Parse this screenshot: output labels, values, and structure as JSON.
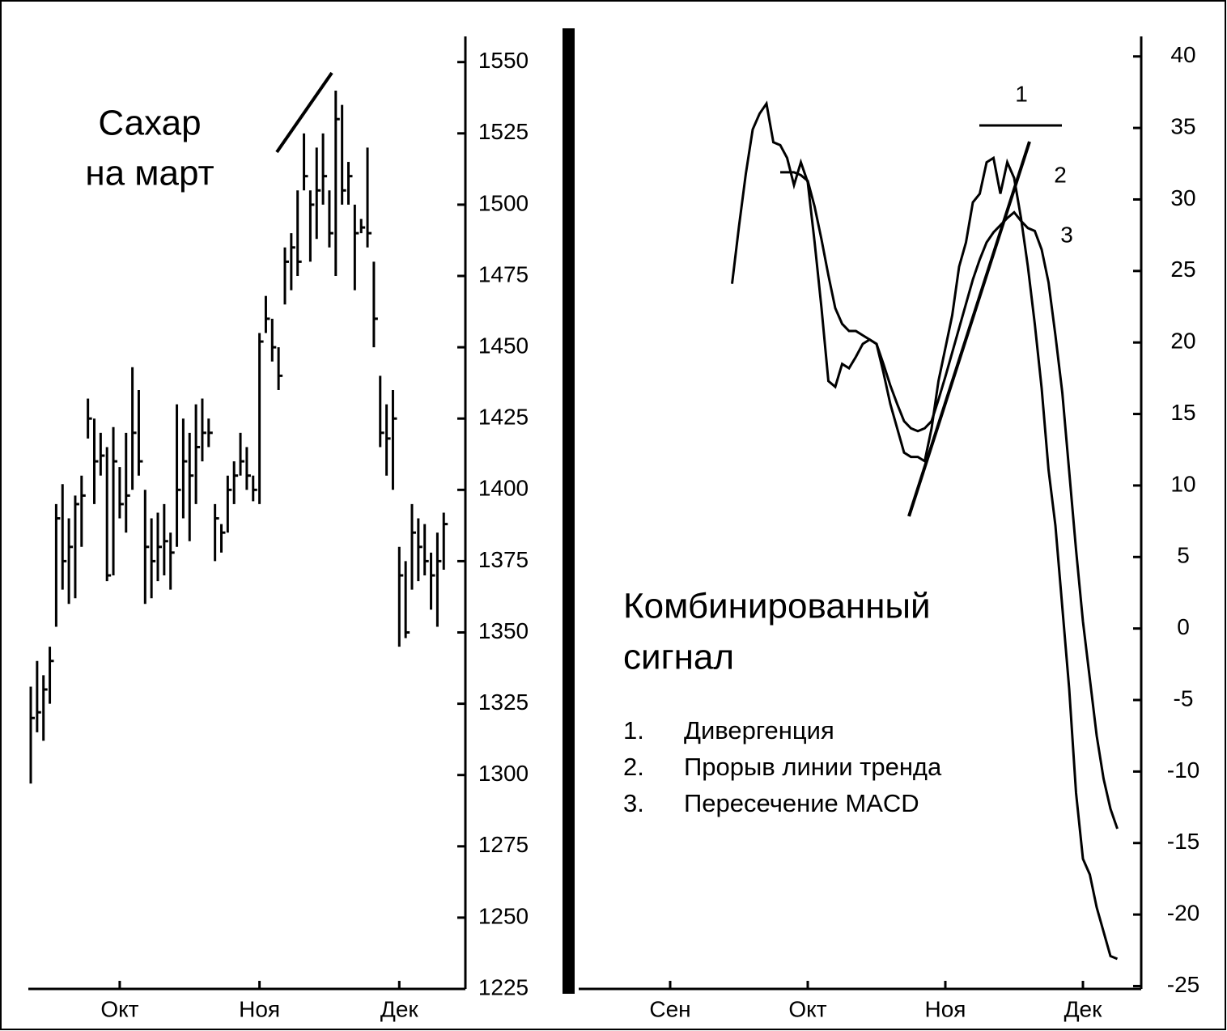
{
  "chart_data": [
    {
      "type": "ohlc",
      "title": [
        "Сахар",
        "на март"
      ],
      "color": "#000000",
      "categories": [
        null,
        null,
        null,
        null,
        null,
        null,
        null,
        null,
        null,
        null,
        null,
        null,
        null,
        null,
        "Окт",
        null,
        null,
        null,
        null,
        null,
        null,
        null,
        null,
        null,
        null,
        null,
        null,
        null,
        null,
        null,
        null,
        null,
        null,
        null,
        null,
        null,
        "Ноя",
        null,
        null,
        null,
        null,
        null,
        null,
        null,
        null,
        null,
        null,
        null,
        null,
        null,
        null,
        null,
        null,
        null,
        null,
        null,
        null,
        null,
        "Дек",
        null,
        null,
        null,
        null,
        null,
        null,
        null
      ],
      "high": [
        1331,
        1340,
        1335,
        1345,
        1395,
        1402,
        1390,
        1398,
        1405,
        1432,
        1425,
        1420,
        1415,
        1422,
        1408,
        1420,
        1443,
        1435,
        1400,
        1390,
        1392,
        1395,
        1385,
        1430,
        1425,
        1420,
        1430,
        1432,
        1425,
        1395,
        1388,
        1405,
        1410,
        1420,
        1415,
        1405,
        1455,
        1468,
        1460,
        1450,
        1485,
        1490,
        1505,
        1525,
        1505,
        1520,
        1525,
        1505,
        1540,
        1535,
        1515,
        1500,
        1495,
        1520,
        1480,
        1440,
        1430,
        1435,
        1380,
        1375,
        1395,
        1390,
        1388,
        1378,
        1385,
        1392
      ],
      "low": [
        1297,
        1315,
        1312,
        1325,
        1352,
        1365,
        1360,
        1362,
        1380,
        1418,
        1395,
        1405,
        1368,
        1370,
        1390,
        1385,
        1400,
        1405,
        1360,
        1362,
        1368,
        1370,
        1365,
        1380,
        1390,
        1382,
        1395,
        1410,
        1415,
        1375,
        1378,
        1385,
        1395,
        1405,
        1400,
        1396,
        1395,
        1455,
        1445,
        1435,
        1465,
        1470,
        1475,
        1505,
        1480,
        1488,
        1500,
        1485,
        1475,
        1500,
        1500,
        1470,
        1490,
        1485,
        1450,
        1415,
        1405,
        1400,
        1345,
        1348,
        1365,
        1368,
        1370,
        1358,
        1352,
        1372
      ],
      "close": [
        1320,
        1322,
        1330,
        1340,
        1390,
        1375,
        1380,
        1395,
        1398,
        1425,
        1410,
        1412,
        1370,
        1410,
        1395,
        1398,
        1420,
        1410,
        1380,
        1375,
        1380,
        1382,
        1378,
        1400,
        1410,
        1405,
        1415,
        1420,
        1420,
        1390,
        1385,
        1400,
        1405,
        1410,
        1405,
        1400,
        1452,
        1460,
        1450,
        1440,
        1480,
        1485,
        1480,
        1510,
        1500,
        1505,
        1510,
        1490,
        1530,
        1505,
        1510,
        1490,
        1492,
        1490,
        1460,
        1420,
        1418,
        1425,
        1370,
        1350,
        1385,
        1380,
        1375,
        1370,
        1375,
        1388
      ],
      "ylim": [
        1225,
        1559
      ],
      "yticks": [
        1225,
        1250,
        1275,
        1300,
        1325,
        1350,
        1375,
        1400,
        1425,
        1450,
        1475,
        1500,
        1525,
        1550
      ]
    },
    {
      "type": "line",
      "title": [
        "Комбинированный",
        "сигнал"
      ],
      "notes": [
        {
          "number": "1.",
          "text": "Дивергенция"
        },
        {
          "number": "2.",
          "text": "Прорыв линии тренда"
        },
        {
          "number": "3.",
          "text": "Пересечение MACD"
        }
      ],
      "annotations": [
        "1",
        "2",
        "3"
      ],
      "categories": [
        "Сен",
        null,
        null,
        null,
        null,
        null,
        null,
        null,
        null,
        null,
        null,
        null,
        null,
        null,
        null,
        null,
        null,
        null,
        null,
        null,
        "Окт",
        null,
        null,
        null,
        null,
        null,
        null,
        null,
        null,
        null,
        null,
        null,
        null,
        null,
        null,
        null,
        null,
        null,
        null,
        null,
        "Ноя",
        null,
        null,
        null,
        null,
        null,
        null,
        null,
        null,
        null,
        null,
        null,
        null,
        null,
        null,
        null,
        null,
        null,
        null,
        null,
        "Дек",
        null,
        null,
        null,
        null,
        null
      ],
      "series": [
        {
          "color": "#000000",
          "values": [
            null,
            null,
            null,
            null,
            null,
            null,
            null,
            null,
            null,
            24.1,
            28.1,
            31.8,
            34.9,
            36,
            36.7,
            34,
            33.8,
            32.9,
            31,
            32.6,
            31.2,
            27,
            22.4,
            17.3,
            16.9,
            18.5,
            18.2,
            19,
            19.9,
            20.2,
            19.9,
            17.9,
            15.7,
            14,
            12.3,
            12,
            12,
            11.7,
            14,
            17.3,
            19.6,
            21.9,
            25.3,
            27,
            29.8,
            30.4,
            32.6,
            32.9,
            30.4,
            32.6,
            31.5,
            28.7,
            25.3,
            21.3,
            16.8,
            11.1,
            7.2,
            1.5,
            -4.2,
            -11.5,
            -16.1,
            -17.2,
            -19.5,
            -21.2,
            -22.9,
            -23.1
          ]
        },
        {
          "color": "#000000",
          "values": [
            null,
            null,
            null,
            null,
            null,
            null,
            null,
            null,
            null,
            null,
            null,
            null,
            null,
            null,
            null,
            null,
            31.9,
            31.9,
            31.9,
            31.7,
            31.3,
            29.5,
            27.2,
            24.7,
            22.4,
            21.3,
            20.8,
            20.8,
            20.5,
            20.2,
            19.9,
            18.5,
            17,
            15.7,
            14.5,
            14,
            13.8,
            14,
            14.5,
            16,
            17.6,
            19.3,
            21,
            22.7,
            24.4,
            25.8,
            27,
            27.7,
            28.2,
            28.7,
            29.1,
            28.5,
            28,
            27.8,
            26.5,
            24.2,
            20.5,
            16.5,
            11,
            5.5,
            0.5,
            -3.5,
            -7.5,
            -10.5,
            -12.6,
            -14
          ]
        }
      ],
      "ylim": [
        -25.2,
        41.4
      ],
      "yticks": [
        -25,
        -20,
        -15,
        -10,
        -5,
        0,
        5,
        10,
        15,
        20,
        25,
        30,
        35,
        40
      ]
    }
  ]
}
